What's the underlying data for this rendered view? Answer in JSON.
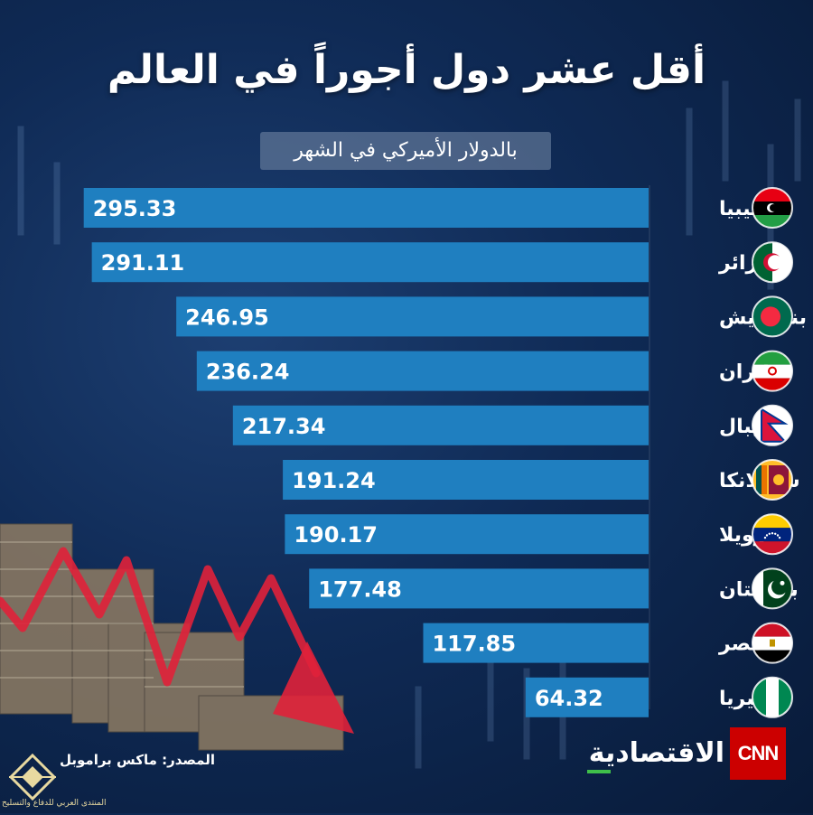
{
  "header": {
    "title": "أقل عشر دول أجوراً في العالم",
    "subtitle": "بالدولار الأميركي في الشهر"
  },
  "chart_data": {
    "type": "bar",
    "orientation": "horizontal",
    "title": "أقل عشر دول أجوراً في العالم",
    "subtitle": "بالدولار الأميركي في الشهر",
    "categories": [
      "ليبيا",
      "الجزائر",
      "بنغلاديش",
      "إيران",
      "نيبال",
      "سريلانكا",
      "فنزويلا",
      "باكستان",
      "مصر",
      "نيجيريا"
    ],
    "values": [
      295.33,
      291.11,
      246.95,
      236.24,
      217.34,
      191.24,
      190.17,
      177.48,
      117.85,
      64.32
    ],
    "value_labels": [
      "295.33",
      "291.11",
      "246.95",
      "236.24",
      "217.34",
      "191.24",
      "190.17",
      "177.48",
      "117.85",
      "64.32"
    ],
    "flag_icons": [
      "libya-flag-icon",
      "algeria-flag-icon",
      "bangladesh-flag-icon",
      "iran-flag-icon",
      "nepal-flag-icon",
      "sri-lanka-flag-icon",
      "venezuela-flag-icon",
      "pakistan-flag-icon",
      "egypt-flag-icon",
      "nigeria-flag-icon"
    ],
    "xlim": [
      0,
      300
    ],
    "bar_color": "#1f7fc0",
    "bar_growth": "right-to-left"
  },
  "footer": {
    "source": "المصدر: ماكس براموبل",
    "watermark_text": "المنتدى العربي للدفاع والتسليح",
    "brand_cnn": "CNN",
    "brand_name": "الاقتصادية"
  }
}
